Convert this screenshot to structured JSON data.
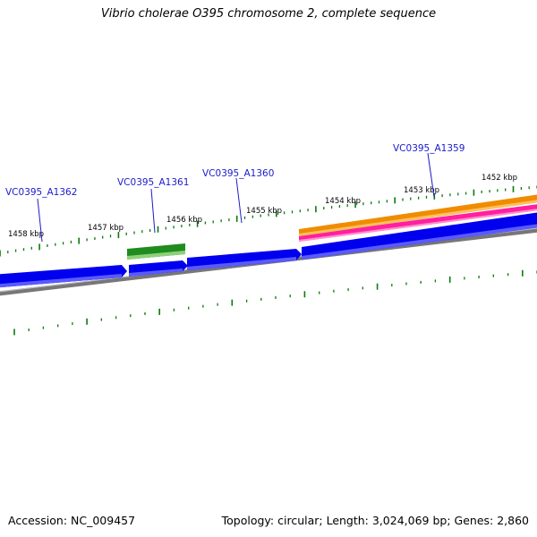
{
  "title": "Vibrio cholerae O395 chromosome 2, complete sequence",
  "footer": {
    "accession": "Accession: NC_009457",
    "topology": "Topology: circular; Length: 3,024,069 bp; Genes: 2,860"
  },
  "scale": {
    "unit": "kbp",
    "labels": [
      {
        "value": 1458,
        "text": "1458 kbp"
      },
      {
        "value": 1457,
        "text": "1457 kbp"
      },
      {
        "value": 1456,
        "text": "1456 kbp"
      },
      {
        "value": 1455,
        "text": "1455 kbp"
      },
      {
        "value": 1454,
        "text": "1454 kbp"
      },
      {
        "value": 1453,
        "text": "1453 kbp"
      },
      {
        "value": 1452,
        "text": "1452 kbp"
      }
    ]
  },
  "genes": [
    {
      "name": "VC0395_A1362"
    },
    {
      "name": "VC0395_A1361"
    },
    {
      "name": "VC0395_A1360"
    },
    {
      "name": "VC0395_A1359"
    }
  ],
  "colors": {
    "cds": "#0000ee",
    "cds_light": "#5a5aff",
    "rna_feature": "#1e8c1e",
    "orange_feature": "#f08c00",
    "pink_feature": "#ff1fa0",
    "backbone": "#777777",
    "ticks": "#0a7a0a",
    "leader_line": "#1a1acc"
  }
}
